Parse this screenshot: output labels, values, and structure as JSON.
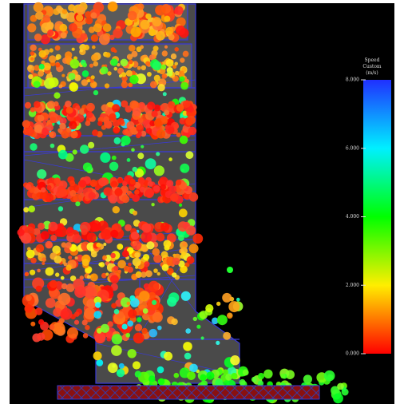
{
  "legend": {
    "title": [
      "Speed",
      "Custom",
      "(m/s)"
    ],
    "range": [
      0,
      8
    ],
    "ticks": [
      {
        "value": 0,
        "label": "0.000"
      },
      {
        "value": 2,
        "label": "2.000"
      },
      {
        "value": 4,
        "label": "4.000"
      },
      {
        "value": 6,
        "label": "6.000"
      },
      {
        "value": 8,
        "label": "8.000"
      }
    ]
  }
}
